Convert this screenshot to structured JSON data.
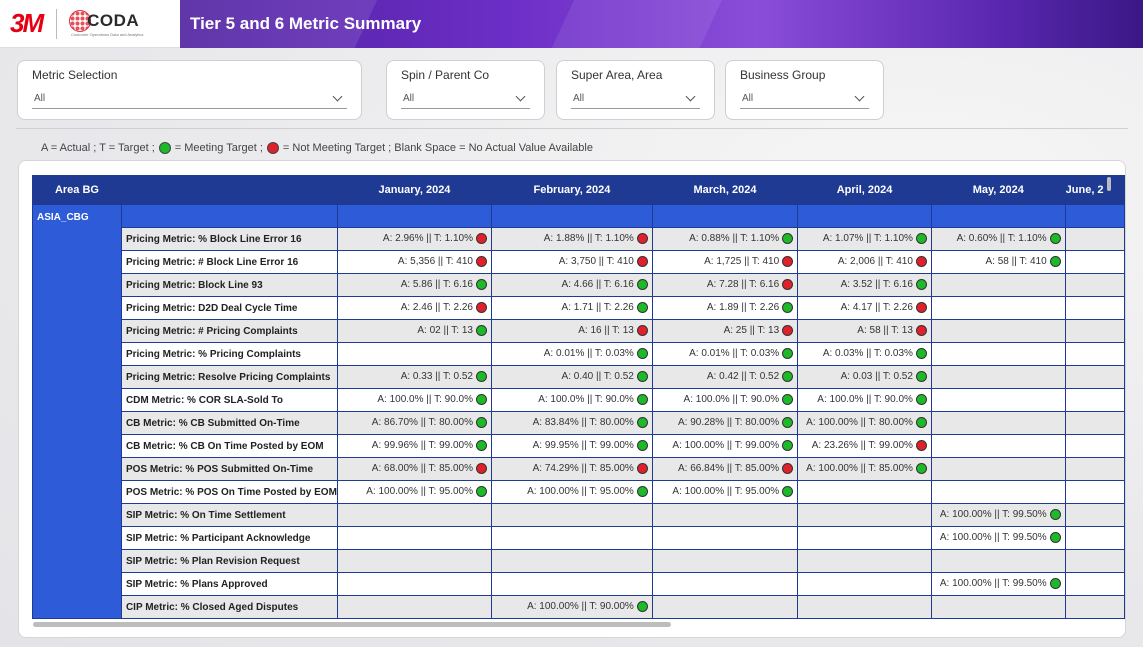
{
  "header": {
    "logo_3m": "3M",
    "logo_coda": "CODA",
    "logo_coda_sub": "Customer Operations Data and Analytics",
    "title": "Tier 5 and 6 Metric Summary"
  },
  "filters": [
    {
      "label": "Metric Selection",
      "value": "All"
    },
    {
      "label": "Spin / Parent Co",
      "value": "All"
    },
    {
      "label": "Super Area, Area",
      "value": "All"
    },
    {
      "label": "Business Group",
      "value": "All"
    }
  ],
  "legend": {
    "part1": "A = Actual  ;  T = Target  ;",
    "part2": "= Meeting Target  ;",
    "part3": "= Not Meeting Target  ;  Blank Space = No Actual Value Available"
  },
  "table": {
    "area_header": "Area BG",
    "metric_header": "",
    "months": [
      "January, 2024",
      "February, 2024",
      "March, 2024",
      "April, 2024",
      "May, 2024",
      "June, 2"
    ],
    "area": "ASIA_CBG",
    "rows": [
      {
        "metric": "Pricing Metric: % Block Line Error 16",
        "cells": [
          {
            "text": "A: 2.96%  ||  T: 1.10%",
            "status": "red"
          },
          {
            "text": "A: 1.88%  ||  T: 1.10%",
            "status": "red"
          },
          {
            "text": "A: 0.88%  ||  T: 1.10%",
            "status": "green"
          },
          {
            "text": "A: 1.07%  ||  T: 1.10%",
            "status": "green"
          },
          {
            "text": "A: 0.60%  ||  T: 1.10%",
            "status": "green"
          },
          {
            "text": "",
            "status": ""
          }
        ]
      },
      {
        "metric": "Pricing Metric: # Block Line Error 16",
        "cells": [
          {
            "text": "A: 5,356  ||  T: 410",
            "status": "red"
          },
          {
            "text": "A: 3,750  ||  T: 410",
            "status": "red"
          },
          {
            "text": "A: 1,725  ||  T: 410",
            "status": "red"
          },
          {
            "text": "A: 2,006  ||  T: 410",
            "status": "red"
          },
          {
            "text": "A: 58  ||  T: 410",
            "status": "green"
          },
          {
            "text": "",
            "status": ""
          }
        ]
      },
      {
        "metric": "Pricing Metric: Block Line 93",
        "cells": [
          {
            "text": "A: 5.86  ||  T: 6.16",
            "status": "green"
          },
          {
            "text": "A: 4.66  ||  T: 6.16",
            "status": "green"
          },
          {
            "text": "A: 7.28  ||  T: 6.16",
            "status": "red"
          },
          {
            "text": "A: 3.52  ||  T: 6.16",
            "status": "green"
          },
          {
            "text": "",
            "status": ""
          },
          {
            "text": "",
            "status": ""
          }
        ]
      },
      {
        "metric": "Pricing Metric: D2D Deal Cycle Time",
        "cells": [
          {
            "text": "A: 2.46  ||  T: 2.26",
            "status": "red"
          },
          {
            "text": "A: 1.71  ||  T: 2.26",
            "status": "green"
          },
          {
            "text": "A: 1.89  ||  T: 2.26",
            "status": "green"
          },
          {
            "text": "A: 4.17  ||  T: 2.26",
            "status": "red"
          },
          {
            "text": "",
            "status": ""
          },
          {
            "text": "",
            "status": ""
          }
        ]
      },
      {
        "metric": "Pricing Metric: # Pricing Complaints",
        "cells": [
          {
            "text": "A: 02  ||  T: 13",
            "status": "green"
          },
          {
            "text": "A: 16  ||  T: 13",
            "status": "red"
          },
          {
            "text": "A: 25  ||  T: 13",
            "status": "red"
          },
          {
            "text": "A: 58  ||  T: 13",
            "status": "red"
          },
          {
            "text": "",
            "status": ""
          },
          {
            "text": "",
            "status": ""
          }
        ]
      },
      {
        "metric": "Pricing Metric: % Pricing Complaints",
        "cells": [
          {
            "text": "",
            "status": ""
          },
          {
            "text": "A: 0.01%  ||  T: 0.03%",
            "status": "green"
          },
          {
            "text": "A: 0.01%  ||  T: 0.03%",
            "status": "green"
          },
          {
            "text": "A: 0.03%  ||  T: 0.03%",
            "status": "green"
          },
          {
            "text": "",
            "status": ""
          },
          {
            "text": "",
            "status": ""
          }
        ]
      },
      {
        "metric": "Pricing Metric: Resolve Pricing Complaints",
        "cells": [
          {
            "text": "A: 0.33  ||  T: 0.52",
            "status": "green"
          },
          {
            "text": "A: 0.40  ||  T: 0.52",
            "status": "green"
          },
          {
            "text": "A: 0.42  ||  T: 0.52",
            "status": "green"
          },
          {
            "text": "A: 0.03  ||  T: 0.52",
            "status": "green"
          },
          {
            "text": "",
            "status": ""
          },
          {
            "text": "",
            "status": ""
          }
        ]
      },
      {
        "metric": "CDM Metric: % COR SLA-Sold To",
        "cells": [
          {
            "text": "A: 100.0%  ||  T: 90.0%",
            "status": "green"
          },
          {
            "text": "A: 100.0%  ||  T: 90.0%",
            "status": "green"
          },
          {
            "text": "A: 100.0%  ||  T: 90.0%",
            "status": "green"
          },
          {
            "text": "A: 100.0%  ||  T: 90.0%",
            "status": "green"
          },
          {
            "text": "",
            "status": ""
          },
          {
            "text": "",
            "status": ""
          }
        ]
      },
      {
        "metric": "CB Metric: % CB Submitted On-Time",
        "cells": [
          {
            "text": "A: 86.70%  ||  T: 80.00%",
            "status": "green"
          },
          {
            "text": "A: 83.84%  ||  T: 80.00%",
            "status": "green"
          },
          {
            "text": "A: 90.28%  ||  T: 80.00%",
            "status": "green"
          },
          {
            "text": "A: 100.00%  ||  T: 80.00%",
            "status": "green"
          },
          {
            "text": "",
            "status": ""
          },
          {
            "text": "",
            "status": ""
          }
        ]
      },
      {
        "metric": "CB Metric: % CB On Time Posted by EOM",
        "cells": [
          {
            "text": "A: 99.96%  ||  T: 99.00%",
            "status": "green"
          },
          {
            "text": "A: 99.95%  ||  T: 99.00%",
            "status": "green"
          },
          {
            "text": "A: 100.00%  ||  T: 99.00%",
            "status": "green"
          },
          {
            "text": "A: 23.26%  ||  T: 99.00%",
            "status": "red"
          },
          {
            "text": "",
            "status": ""
          },
          {
            "text": "",
            "status": ""
          }
        ]
      },
      {
        "metric": "POS Metric: % POS Submitted On-Time",
        "cells": [
          {
            "text": "A: 68.00%  ||  T: 85.00%",
            "status": "red"
          },
          {
            "text": "A: 74.29%  ||  T: 85.00%",
            "status": "red"
          },
          {
            "text": "A: 66.84%  ||  T: 85.00%",
            "status": "red"
          },
          {
            "text": "A: 100.00%  ||  T: 85.00%",
            "status": "green"
          },
          {
            "text": "",
            "status": ""
          },
          {
            "text": "",
            "status": ""
          }
        ]
      },
      {
        "metric": "POS Metric: % POS On Time Posted by EOM",
        "cells": [
          {
            "text": "A: 100.00%  ||  T: 95.00%",
            "status": "green"
          },
          {
            "text": "A: 100.00%  ||  T: 95.00%",
            "status": "green"
          },
          {
            "text": "A: 100.00%  ||  T: 95.00%",
            "status": "green"
          },
          {
            "text": "",
            "status": ""
          },
          {
            "text": "",
            "status": ""
          },
          {
            "text": "",
            "status": ""
          }
        ]
      },
      {
        "metric": "SIP Metric: % On Time Settlement",
        "cells": [
          {
            "text": "",
            "status": ""
          },
          {
            "text": "",
            "status": ""
          },
          {
            "text": "",
            "status": ""
          },
          {
            "text": "",
            "status": ""
          },
          {
            "text": "A: 100.00%  ||  T: 99.50%",
            "status": "green"
          },
          {
            "text": "",
            "status": ""
          }
        ]
      },
      {
        "metric": "SIP Metric: % Participant Acknowledge",
        "cells": [
          {
            "text": "",
            "status": ""
          },
          {
            "text": "",
            "status": ""
          },
          {
            "text": "",
            "status": ""
          },
          {
            "text": "",
            "status": ""
          },
          {
            "text": "A: 100.00%  ||  T: 99.50%",
            "status": "green"
          },
          {
            "text": "",
            "status": ""
          }
        ]
      },
      {
        "metric": "SIP Metric: % Plan Revision Request",
        "cells": [
          {
            "text": "",
            "status": ""
          },
          {
            "text": "",
            "status": ""
          },
          {
            "text": "",
            "status": ""
          },
          {
            "text": "",
            "status": ""
          },
          {
            "text": "",
            "status": ""
          },
          {
            "text": "",
            "status": ""
          }
        ]
      },
      {
        "metric": "SIP Metric: % Plans Approved",
        "cells": [
          {
            "text": "",
            "status": ""
          },
          {
            "text": "",
            "status": ""
          },
          {
            "text": "",
            "status": ""
          },
          {
            "text": "",
            "status": ""
          },
          {
            "text": "A: 100.00%  ||  T: 99.50%",
            "status": "green"
          },
          {
            "text": "",
            "status": ""
          }
        ]
      },
      {
        "metric": "CIP Metric: % Closed Aged Disputes",
        "cells": [
          {
            "text": "",
            "status": ""
          },
          {
            "text": "A: 100.00%  ||  T: 90.00%",
            "status": "green"
          },
          {
            "text": "",
            "status": ""
          },
          {
            "text": "",
            "status": ""
          },
          {
            "text": "",
            "status": ""
          },
          {
            "text": "",
            "status": ""
          }
        ]
      }
    ]
  },
  "colors": {
    "header_blue": "#1f3a93",
    "group_blue": "#2e5bd8",
    "meeting_target": "#1cb928",
    "not_meeting_target": "#e0202a",
    "title_purple": "#6d2fc7"
  }
}
